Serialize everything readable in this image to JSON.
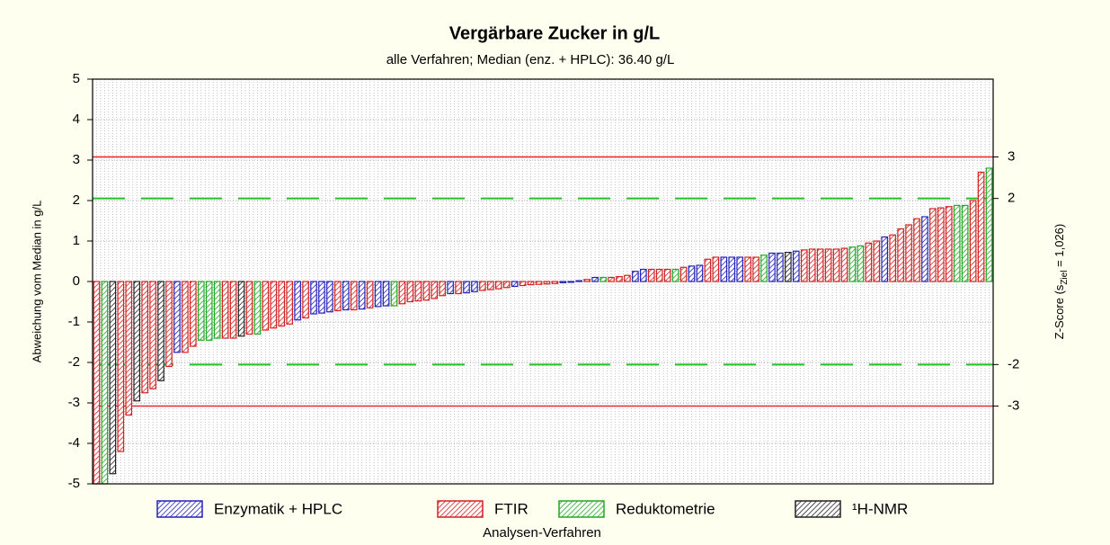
{
  "chart_data": {
    "type": "bar",
    "title": "Vergärbare Zucker in g/L",
    "subtitle": "alle Verfahren; Median (enz. + HPLC): 36.40 g/L",
    "ylabel": "Abweichung vom Median in g/L",
    "xlabel": "Analysen-Verfahren",
    "y2label": {
      "text": "Z-Score (s",
      "subscript": "Ziel",
      "suffix": " = 1,026)"
    },
    "xlim": [
      0.5,
      112.5
    ],
    "ylim": [
      -5,
      5
    ],
    "yticks": [
      -5,
      -4,
      -3,
      -2,
      -1,
      0,
      1,
      2,
      3,
      4,
      5
    ],
    "grid": true,
    "reference_lines": [
      {
        "value": 3.078,
        "label": "3",
        "color": "#e8262a",
        "style": "solid"
      },
      {
        "value": 2.052,
        "label": "2",
        "color": "#22c022",
        "style": "dashed"
      },
      {
        "value": -2.052,
        "label": "-2",
        "color": "#22c022",
        "style": "dashed"
      },
      {
        "value": -3.078,
        "label": "-3",
        "color": "#e8262a",
        "style": "solid"
      }
    ],
    "series": [
      {
        "name": "Enzymatik + HPLC",
        "color": "#2222bb",
        "x": [
          11,
          26,
          28,
          29,
          30,
          32,
          34,
          36,
          37,
          45,
          47,
          48,
          53,
          59,
          60,
          61,
          63,
          68,
          69,
          75,
          76,
          79,
          80,
          81,
          85,
          86,
          88,
          99,
          104
        ],
        "values": [
          -1.75,
          -0.95,
          -0.8,
          -0.78,
          -0.75,
          -0.7,
          -0.68,
          -0.62,
          -0.6,
          -0.3,
          -0.28,
          -0.25,
          -0.12,
          -0.03,
          -0.02,
          0.02,
          0.1,
          0.25,
          0.3,
          0.38,
          0.4,
          0.6,
          0.6,
          0.6,
          0.7,
          0.7,
          0.75,
          1.1,
          1.6
        ]
      },
      {
        "name": "FTIR",
        "color": "#d42020",
        "x": [
          1,
          4,
          5,
          7,
          8,
          10,
          12,
          13,
          17,
          18,
          20,
          22,
          23,
          24,
          25,
          27,
          31,
          33,
          35,
          39,
          40,
          41,
          42,
          43,
          44,
          46,
          49,
          50,
          51,
          52,
          54,
          55,
          56,
          57,
          58,
          62,
          65,
          66,
          67,
          70,
          71,
          72,
          74,
          77,
          78,
          82,
          83,
          89,
          90,
          91,
          92,
          93,
          94,
          97,
          98,
          100,
          101,
          102,
          103,
          105,
          106,
          107,
          110,
          111
        ],
        "values": [
          -5.0,
          -4.2,
          -3.3,
          -2.75,
          -2.65,
          -2.1,
          -1.75,
          -1.6,
          -1.4,
          -1.4,
          -1.3,
          -1.2,
          -1.15,
          -1.1,
          -1.05,
          -0.9,
          -0.72,
          -0.7,
          -0.65,
          -0.55,
          -0.5,
          -0.48,
          -0.46,
          -0.42,
          -0.35,
          -0.3,
          -0.22,
          -0.2,
          -0.18,
          -0.15,
          -0.1,
          -0.08,
          -0.07,
          -0.06,
          -0.05,
          0.05,
          0.1,
          0.12,
          0.15,
          0.3,
          0.3,
          0.3,
          0.35,
          0.55,
          0.6,
          0.6,
          0.6,
          0.78,
          0.8,
          0.8,
          0.8,
          0.8,
          0.82,
          0.95,
          1.0,
          1.15,
          1.3,
          1.4,
          1.55,
          1.8,
          1.82,
          1.85,
          2.0,
          2.7
        ]
      },
      {
        "name": "Reduktometrie",
        "color": "#22a822",
        "x": [
          2,
          14,
          15,
          16,
          21,
          38,
          64,
          73,
          84,
          95,
          96,
          108,
          109,
          112
        ],
        "values": [
          -5.0,
          -1.45,
          -1.45,
          -1.4,
          -1.3,
          -0.6,
          0.1,
          0.3,
          0.65,
          0.85,
          0.88,
          1.88,
          1.88,
          2.8
        ]
      },
      {
        "name": "¹H-NMR",
        "color": "#222222",
        "x": [
          3,
          6,
          9,
          19,
          87
        ],
        "values": [
          -4.75,
          -2.95,
          -2.45,
          -1.35,
          0.72
        ]
      }
    ]
  }
}
